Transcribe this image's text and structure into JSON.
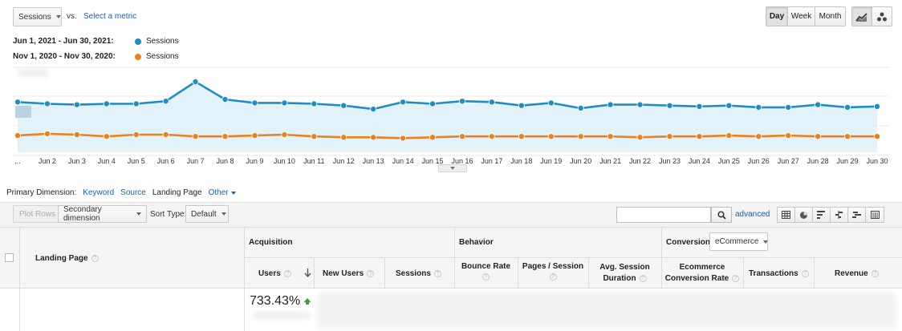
{
  "controls": {
    "metric_select": "Sessions",
    "vs_label": "vs.",
    "select_metric_link": "Select a metric",
    "granularity": [
      {
        "label": "Day",
        "active": true
      },
      {
        "label": "Week",
        "active": false
      },
      {
        "label": "Month",
        "active": false
      }
    ],
    "chart_type_icons": [
      "line-chart-icon",
      "motion-chart-icon"
    ]
  },
  "legend": [
    {
      "dates": "Jun 1, 2021 - Jun 30, 2021:",
      "metric": "Sessions",
      "color": "#1f8dc4"
    },
    {
      "dates": "Nov 1, 2020 - Nov 30, 2020:",
      "metric": "Sessions",
      "color": "#e8821f"
    }
  ],
  "chart_data": {
    "type": "line",
    "x": [
      "...",
      "Jun 2",
      "Jun 3",
      "Jun 4",
      "Jun 5",
      "Jun 6",
      "Jun 7",
      "Jun 8",
      "Jun 9",
      "Jun 10",
      "Jun 11",
      "Jun 12",
      "Jun 13",
      "Jun 14",
      "Jun 15",
      "Jun 16",
      "Jun 17",
      "Jun 18",
      "Jun 19",
      "Jun 20",
      "Jun 21",
      "Jun 22",
      "Jun 23",
      "Jun 24",
      "Jun 25",
      "Jun 26",
      "Jun 27",
      "Jun 28",
      "Jun 29",
      "Jun 30"
    ],
    "series": [
      {
        "name": "Sessions",
        "period": "Jun 1, 2021 - Jun 30, 2021",
        "color": "#1f8dc4",
        "area": true,
        "values": [
          57,
          55,
          54,
          55,
          55,
          58,
          80,
          60,
          56,
          56,
          55,
          53,
          49,
          57,
          55,
          58,
          57,
          53,
          56,
          50,
          54,
          54,
          53,
          52,
          53,
          51,
          51,
          54,
          51,
          52
        ]
      },
      {
        "name": "Sessions",
        "period": "Nov 1, 2020 - Nov 30, 2020",
        "color": "#e8821f",
        "area": false,
        "values": [
          19,
          21,
          20,
          18,
          20,
          20,
          18,
          18,
          19,
          20,
          18,
          17,
          17,
          16,
          17,
          18,
          18,
          18,
          18,
          18,
          18,
          17,
          18,
          18,
          19,
          18,
          19,
          18,
          18,
          18
        ]
      }
    ],
    "ylim": [
      0,
      100
    ],
    "grid": true
  },
  "dimension_bar": {
    "label": "Primary Dimension:",
    "options": [
      "Keyword",
      "Source",
      "Landing Page"
    ],
    "active": "Landing Page",
    "other": "Other"
  },
  "toolbar": {
    "plot_rows": "Plot Rows",
    "secondary_dimension": "Secondary dimension",
    "sort_type_label": "Sort Type:",
    "sort_type_value": "Default",
    "search_placeholder": "",
    "advanced": "advanced",
    "view_icons": [
      "table-view-icon",
      "pie-view-icon",
      "performance-view-icon",
      "comparison-view-icon",
      "term-cloud-view-icon",
      "pivot-view-icon"
    ]
  },
  "table": {
    "landing_page_header": "Landing Page",
    "groups": {
      "acquisition": "Acquisition",
      "behavior": "Behavior",
      "conversions": "Conversions",
      "conversions_select": "eCommerce"
    },
    "columns": {
      "users": "Users",
      "new_users": "New Users",
      "sessions": "Sessions",
      "bounce_rate": "Bounce Rate",
      "pages_session": "Pages / Session",
      "avg_session_1": "Avg. Session",
      "avg_session_2": "Duration",
      "ecom_rate_1": "Ecommerce",
      "ecom_rate_2": "Conversion Rate",
      "transactions": "Transactions",
      "revenue": "Revenue"
    },
    "summary": {
      "users_change": "733.43%"
    }
  }
}
